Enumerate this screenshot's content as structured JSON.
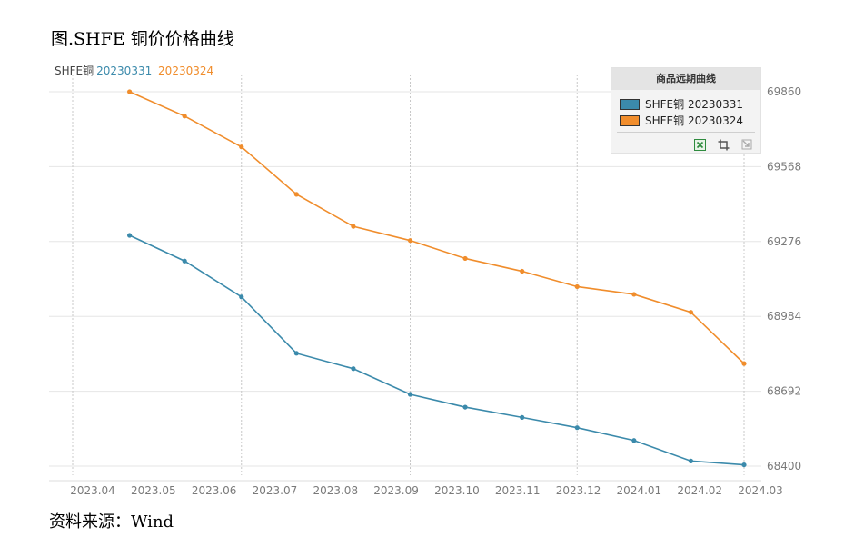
{
  "figure": {
    "title": "图.SHFE 铜价价格曲线",
    "source": "资料来源：Wind"
  },
  "top_legend": {
    "label": "SHFE铜",
    "series": [
      "20230331",
      "20230324"
    ]
  },
  "legend_panel": {
    "title": "商品远期曲线",
    "items": [
      "SHFE铜 20230331",
      "SHFE铜 20230324"
    ],
    "tools": [
      "excel-export-icon",
      "crop-icon",
      "select-icon"
    ]
  },
  "colors": {
    "series_20230331": "#3b8aab",
    "series_20230324": "#f08d2c",
    "grid": "#e6e6e6",
    "vgrid": "#c8c8c8",
    "axis_text": "#7a7a7a"
  },
  "chart_data": {
    "type": "line",
    "title": "",
    "xlabel": "",
    "ylabel": "",
    "x_ticks": [
      "2023.04",
      "2023.05",
      "2023.06",
      "2023.07",
      "2023.08",
      "2023.09",
      "2023.10",
      "2023.11",
      "2023.12",
      "2024.01",
      "2024.02",
      "2024.03"
    ],
    "y_ticks": [
      68400,
      68692,
      68984,
      69276,
      69568,
      69860
    ],
    "ylim": [
      68400,
      69860
    ],
    "y_axis_position": "right",
    "grid": true,
    "series": [
      {
        "name": "20230331",
        "x": [
          "2023-04-15",
          "2023-05-15",
          "2023-06-15",
          "2023-07-15",
          "2023-08-15",
          "2023-09-15",
          "2023-10-15",
          "2023-11-15",
          "2023-12-15",
          "2024-01-15",
          "2024-02-15",
          "2024-03-15"
        ],
        "values": [
          69300,
          69200,
          69060,
          68840,
          68780,
          68680,
          68630,
          68590,
          68550,
          68500,
          68420,
          68405
        ]
      },
      {
        "name": "20230324",
        "x": [
          "2023-04-15",
          "2023-05-15",
          "2023-06-15",
          "2023-07-15",
          "2023-08-15",
          "2023-09-15",
          "2023-10-15",
          "2023-11-15",
          "2023-12-15",
          "2024-01-15",
          "2024-02-15",
          "2024-03-15"
        ],
        "values": [
          69860,
          69765,
          69645,
          69460,
          69335,
          69280,
          69210,
          69160,
          69100,
          69070,
          69000,
          68800
        ]
      }
    ]
  }
}
